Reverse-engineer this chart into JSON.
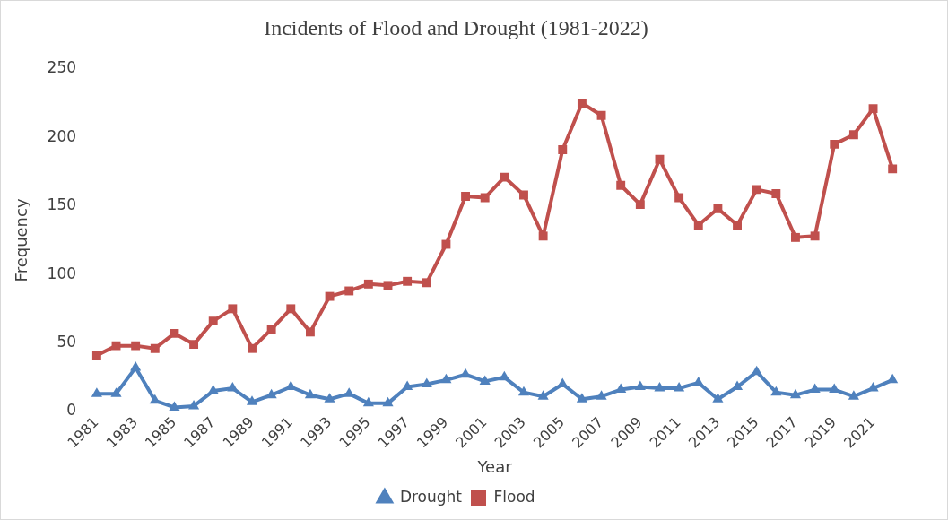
{
  "chart_data": {
    "type": "line",
    "title": "Incidents of Flood and Drought (1981-2022)",
    "xlabel": "Year",
    "ylabel": "Frequency",
    "categories": [
      "1981",
      null,
      "1983",
      null,
      "1985",
      null,
      "1987",
      null,
      "1989",
      null,
      "1991",
      null,
      "1993",
      null,
      "1995",
      null,
      "1997",
      null,
      "1999",
      null,
      "2001",
      null,
      "2003",
      null,
      "2005",
      null,
      "2007",
      null,
      "2009",
      null,
      "2011",
      null,
      "2013",
      null,
      "2015",
      null,
      "2017",
      null,
      "2019",
      null,
      "2021",
      null
    ],
    "series": [
      {
        "name": "Drought",
        "color": "#4f81bd",
        "marker": "triangle",
        "values": [
          13,
          13,
          32,
          8,
          3,
          4,
          15,
          17,
          7,
          12,
          18,
          12,
          9,
          13,
          6,
          6,
          18,
          20,
          23,
          27,
          22,
          25,
          14,
          11,
          20,
          9,
          11,
          16,
          18,
          17,
          17,
          21,
          9,
          18,
          29,
          14,
          12,
          16,
          16,
          11,
          17,
          23
        ]
      },
      {
        "name": "Flood",
        "color": "#c0504d",
        "marker": "square",
        "values": [
          41,
          48,
          48,
          46,
          57,
          49,
          66,
          75,
          46,
          60,
          75,
          58,
          84,
          88,
          93,
          92,
          95,
          94,
          122,
          157,
          156,
          171,
          158,
          128,
          191,
          225,
          216,
          165,
          151,
          184,
          156,
          136,
          148,
          136,
          162,
          159,
          127,
          128,
          195,
          202,
          221,
          177
        ]
      }
    ],
    "ylim": [
      0,
      250
    ],
    "yticks": [
      0,
      50,
      100,
      150,
      200,
      250
    ],
    "grid": false,
    "legend": "bottom",
    "line_style": "solid"
  }
}
